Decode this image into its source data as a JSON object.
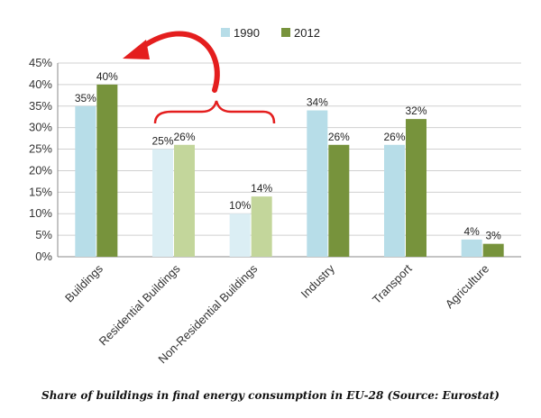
{
  "chart_data": {
    "type": "bar",
    "categories": [
      "Buildings",
      "Residential Buildings",
      "Non-Residential Buildings",
      "Industry",
      "Transport",
      "Agriculture"
    ],
    "series": [
      {
        "name": "1990",
        "values": [
          35,
          25,
          10,
          34,
          26,
          4
        ],
        "labels": [
          "35%",
          "25%",
          "10%",
          "34%",
          "26%",
          "4%"
        ]
      },
      {
        "name": "2012",
        "values": [
          40,
          26,
          14,
          26,
          32,
          3
        ],
        "labels": [
          "40%",
          "26%",
          "14%",
          "26%",
          "32%",
          "3%"
        ]
      }
    ],
    "ylim": [
      0,
      45
    ],
    "yticks": [
      0,
      5,
      10,
      15,
      20,
      25,
      30,
      35,
      40,
      45
    ],
    "ytick_labels": [
      "0%",
      "5%",
      "10%",
      "15%",
      "20%",
      "25%",
      "30%",
      "35%",
      "40%",
      "45%"
    ],
    "grid": true,
    "legend_position": "top-center",
    "light_bar_categories": [
      "Residential Buildings",
      "Non-Residential Buildings"
    ],
    "colors": {
      "1990": "#b7dde8",
      "2012": "#77933c",
      "1990_light": "#dbeef4",
      "2012_light": "#c3d69b",
      "annotation": "#e41e1e"
    }
  },
  "caption": "Share of buildings in final energy consumption in EU-28 (Source: Eurostat)"
}
